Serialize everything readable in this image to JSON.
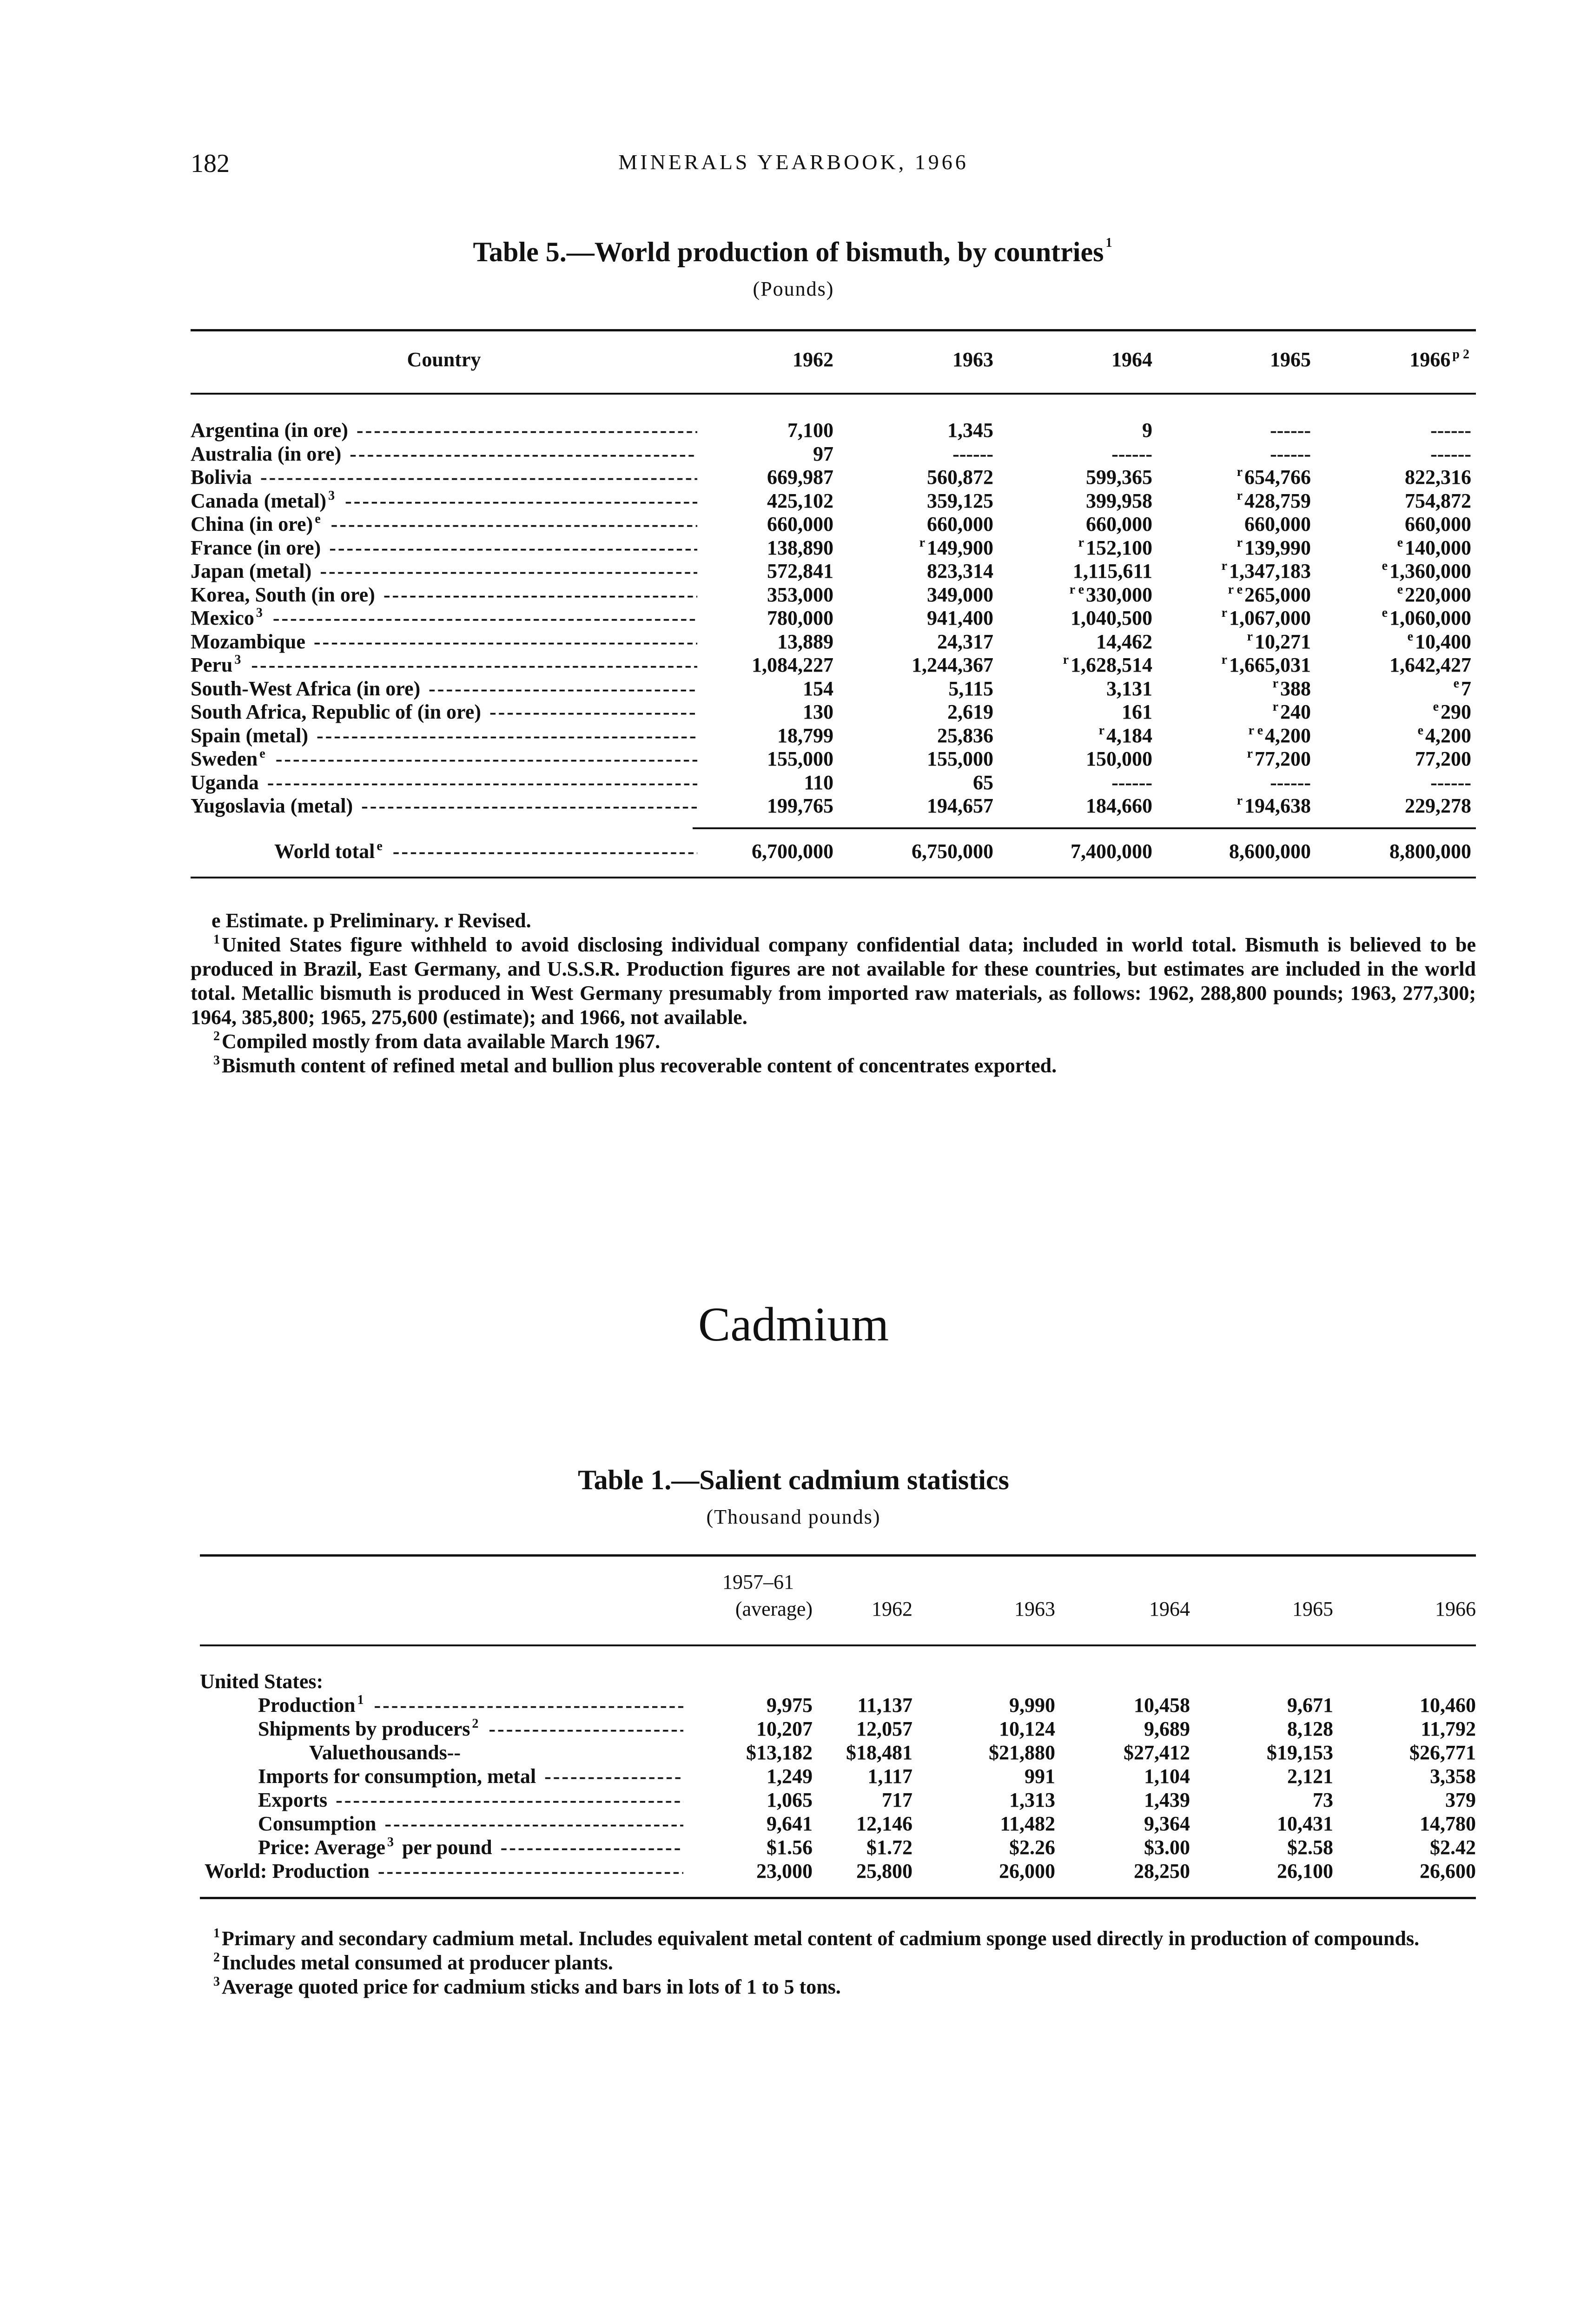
{
  "header": {
    "page_number": "182",
    "running_title": "MINERALS YEARBOOK, 1966"
  },
  "table5": {
    "title": "Table 5.—World production of bismuth, by countries",
    "title_note": "1",
    "unit": "(Pounds)",
    "columns": [
      {
        "label": "Country"
      },
      {
        "label": "1962"
      },
      {
        "label": "1963"
      },
      {
        "label": "1964"
      },
      {
        "label": "1965"
      },
      {
        "label": "1966",
        "note": "p 2"
      }
    ],
    "rows": [
      {
        "label": "Argentina (in ore)",
        "values": [
          "7,100",
          "1,345",
          "9",
          "------",
          "------"
        ]
      },
      {
        "label": "Australia (in ore)",
        "values": [
          "97",
          "------",
          "------",
          "------",
          "------"
        ]
      },
      {
        "label": "Bolivia",
        "values": [
          "669,987",
          "560,872",
          "599,365",
          "r 654,766",
          "822,316"
        ]
      },
      {
        "label": "Canada (metal)",
        "note": "3",
        "values": [
          "425,102",
          "359,125",
          "399,958",
          "r 428,759",
          "754,872"
        ]
      },
      {
        "label": "China (in ore)",
        "note": "e",
        "values": [
          "660,000",
          "660,000",
          "660,000",
          "660,000",
          "660,000"
        ]
      },
      {
        "label": "France (in ore)",
        "values": [
          "138,890",
          "r 149,900",
          "r 152,100",
          "r 139,990",
          "e 140,000"
        ]
      },
      {
        "label": "Japan (metal)",
        "values": [
          "572,841",
          "823,314",
          "1,115,611",
          "r 1,347,183",
          "e 1,360,000"
        ]
      },
      {
        "label": "Korea, South (in ore)",
        "values": [
          "353,000",
          "349,000",
          "r e 330,000",
          "r e 265,000",
          "e 220,000"
        ]
      },
      {
        "label": "Mexico",
        "note": "3",
        "values": [
          "780,000",
          "941,400",
          "1,040,500",
          "r 1,067,000",
          "e 1,060,000"
        ]
      },
      {
        "label": "Mozambique",
        "values": [
          "13,889",
          "24,317",
          "14,462",
          "r 10,271",
          "e 10,400"
        ]
      },
      {
        "label": "Peru",
        "note": "3",
        "values": [
          "1,084,227",
          "1,244,367",
          "r 1,628,514",
          "r 1,665,031",
          "1,642,427"
        ]
      },
      {
        "label": "South-West Africa (in ore)",
        "values": [
          "154",
          "5,115",
          "3,131",
          "r 388",
          "e 7"
        ]
      },
      {
        "label": "South Africa, Republic of (in ore)",
        "values": [
          "130",
          "2,619",
          "161",
          "r 240",
          "e 290"
        ]
      },
      {
        "label": "Spain (metal)",
        "values": [
          "18,799",
          "25,836",
          "r 4,184",
          "r e 4,200",
          "e 4,200"
        ]
      },
      {
        "label": "Sweden",
        "note": "e",
        "values": [
          "155,000",
          "155,000",
          "150,000",
          "r 77,200",
          "77,200"
        ]
      },
      {
        "label": "Uganda",
        "values": [
          "110",
          "65",
          "------",
          "------",
          "------"
        ]
      },
      {
        "label": "Yugoslavia (metal)",
        "values": [
          "199,765",
          "194,657",
          "184,660",
          "r 194,638",
          "229,278"
        ]
      }
    ],
    "total": {
      "label": "World total",
      "note": "e",
      "values": [
        "6,700,000",
        "6,750,000",
        "7,400,000",
        "8,600,000",
        "8,800,000"
      ]
    },
    "footnotes": [
      "e Estimate.   p Preliminary.   r Revised.",
      "United States figure withheld to avoid disclosing individual company confidential data; included in world total. Bismuth is believed to be produced in Brazil, East Germany, and U.S.S.R. Production figures are not available for these countries, but estimates are included in the world total. Metallic bismuth is produced in West Germany presumably from imported raw materials, as follows: 1962, 288,800 pounds; 1963, 277,300; 1964, 385,800; 1965, 275,600 (estimate); and 1966, not available.",
      "Compiled mostly from data available March 1967.",
      "Bismuth content of refined metal and bullion plus recoverable content of concentrates exported."
    ],
    "footnote_marks": [
      "",
      "1",
      "2",
      "3"
    ]
  },
  "section_title": "Cadmium",
  "table1": {
    "title": "Table 1.—Salient cadmium statistics",
    "unit": "(Thousand pounds)",
    "columns": [
      {
        "label": ""
      },
      {
        "label": "1957–61",
        "label2": "(average)"
      },
      {
        "label": "1962"
      },
      {
        "label": "1963"
      },
      {
        "label": "1964"
      },
      {
        "label": "1965"
      },
      {
        "label": "1966"
      }
    ],
    "rows": [
      {
        "label": "United States:",
        "indent": 0,
        "heading": true,
        "values": []
      },
      {
        "label": "Production",
        "note": "1",
        "indent": 1,
        "values": [
          "9,975",
          "11,137",
          "9,990",
          "10,458",
          "9,671",
          "10,460"
        ]
      },
      {
        "label": "Shipments by producers",
        "note": "2",
        "indent": 1,
        "values": [
          "10,207",
          "12,057",
          "10,124",
          "9,689",
          "8,128",
          "11,792"
        ]
      },
      {
        "label": "Value",
        "suffix": "thousands",
        "indent": 2,
        "values": [
          "$13,182",
          "$18,481",
          "$21,880",
          "$27,412",
          "$19,153",
          "$26,771"
        ]
      },
      {
        "label": "Imports for consumption, metal",
        "indent": 1,
        "values": [
          "1,249",
          "1,117",
          "991",
          "1,104",
          "2,121",
          "3,358"
        ]
      },
      {
        "label": "Exports",
        "indent": 1,
        "values": [
          "1,065",
          "717",
          "1,313",
          "1,439",
          "73",
          "379"
        ]
      },
      {
        "label": "Consumption",
        "indent": 1,
        "values": [
          "9,641",
          "12,146",
          "11,482",
          "9,364",
          "10,431",
          "14,780"
        ]
      },
      {
        "label": "Price: Average",
        "note": "3",
        "suffix_plain": "per pound",
        "indent": 1,
        "values": [
          "$1.56",
          "$1.72",
          "$2.26",
          "$3.00",
          "$2.58",
          "$2.42"
        ]
      },
      {
        "label": "World: Production",
        "indent": 0,
        "values": [
          "23,000",
          "25,800",
          "26,000",
          "28,250",
          "26,100",
          "26,600"
        ]
      }
    ],
    "footnotes": [
      "Primary and secondary cadmium metal. Includes equivalent metal content of cadmium sponge used directly in production of compounds.",
      "Includes metal consumed at producer plants.",
      "Average quoted price for cadmium sticks and bars in lots of 1 to 5 tons."
    ],
    "footnote_marks": [
      "1",
      "2",
      "3"
    ]
  }
}
